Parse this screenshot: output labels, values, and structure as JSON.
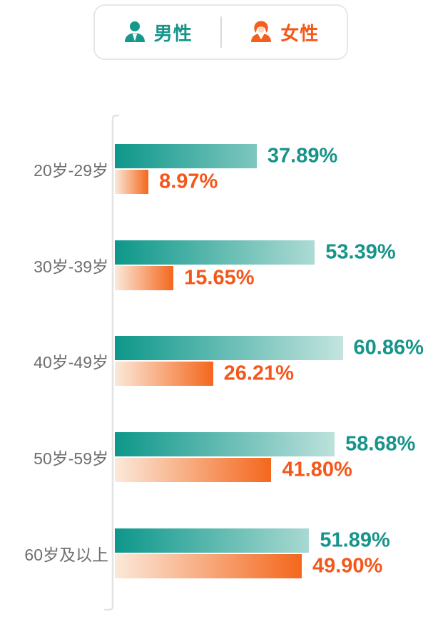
{
  "page": {
    "background": "#ffffff"
  },
  "legend": {
    "items": [
      {
        "id": "male",
        "label": "男性",
        "icon": "male-icon",
        "color": "#14998a"
      },
      {
        "id": "female",
        "label": "女性",
        "icon": "female-icon",
        "color": "#f4601c"
      }
    ]
  },
  "chart_data": {
    "type": "bar",
    "orientation": "horizontal",
    "title": "",
    "xlabel": "",
    "ylabel": "",
    "grid": false,
    "axis_color": "#e3e3e3",
    "legend_position": "top",
    "value_suffix": "%",
    "categories": [
      "20岁-29岁",
      "30岁-39岁",
      "40岁-49岁",
      "50岁-59岁",
      "60岁及以上"
    ],
    "series": [
      {
        "name": "男性",
        "values": [
          37.89,
          53.39,
          60.86,
          58.68,
          51.89
        ],
        "value_labels": [
          "37.89%",
          "53.39%",
          "60.86%",
          "58.68%",
          "51.89%"
        ],
        "color_start": "#0d978a",
        "color_end": "#cfe9e4",
        "label_color": "#17948a"
      },
      {
        "name": "女性",
        "values": [
          8.97,
          15.65,
          26.21,
          41.8,
          49.9
        ],
        "value_labels": [
          "8.97%",
          "15.65%",
          "26.21%",
          "41.80%",
          "49.90%"
        ],
        "color_start": "#fbe9da",
        "color_end": "#f4671d",
        "label_color": "#f4571a"
      }
    ],
    "xlim": [
      0,
      65
    ]
  }
}
